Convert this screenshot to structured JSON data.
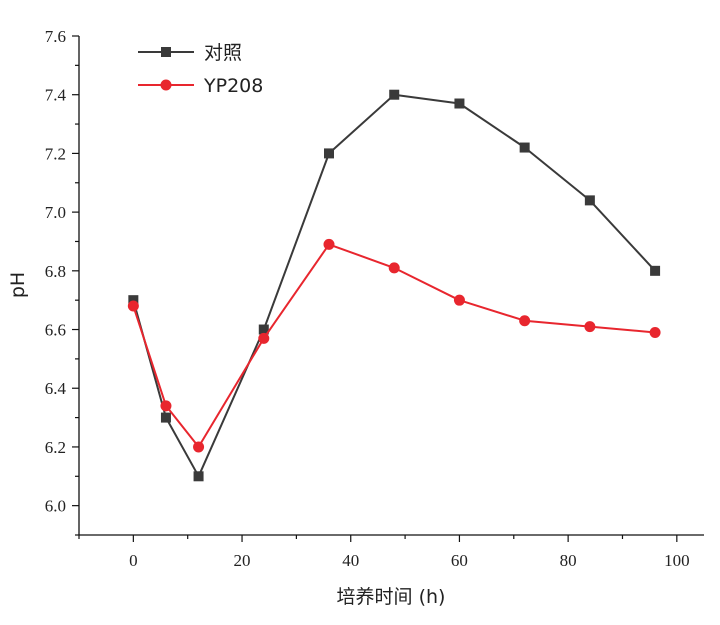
{
  "chart_data": {
    "type": "line",
    "title": "",
    "xlabel": "培养时间 (h)",
    "ylabel": "pH",
    "xlim": [
      -10,
      105
    ],
    "ylim": [
      5.9,
      7.6
    ],
    "x_ticks": [
      0,
      20,
      40,
      60,
      80,
      100
    ],
    "y_ticks": [
      6.0,
      6.2,
      6.4,
      6.6,
      6.8,
      7.0,
      7.2,
      7.4,
      7.6
    ],
    "x_tick_labels": [
      "0",
      "20",
      "40",
      "60",
      "80",
      "100"
    ],
    "y_tick_labels": [
      "6.0",
      "6.2",
      "6.4",
      "6.6",
      "6.8",
      "7.0",
      "7.2",
      "7.4",
      "7.6"
    ],
    "grid": false,
    "legend_position": "top-left",
    "series": [
      {
        "name": "对照",
        "marker": "square",
        "color": "#3a3a3a",
        "x": [
          0,
          6,
          12,
          24,
          36,
          48,
          60,
          72,
          84,
          96
        ],
        "y": [
          6.7,
          6.3,
          6.1,
          6.6,
          7.2,
          7.4,
          7.37,
          7.22,
          7.04,
          6.8
        ]
      },
      {
        "name": "YP208",
        "marker": "circle",
        "color": "#e8262e",
        "x": [
          0,
          6,
          12,
          24,
          36,
          48,
          60,
          72,
          84,
          96
        ],
        "y": [
          6.68,
          6.34,
          6.2,
          6.57,
          6.89,
          6.81,
          6.7,
          6.63,
          6.61,
          6.59
        ]
      }
    ]
  }
}
